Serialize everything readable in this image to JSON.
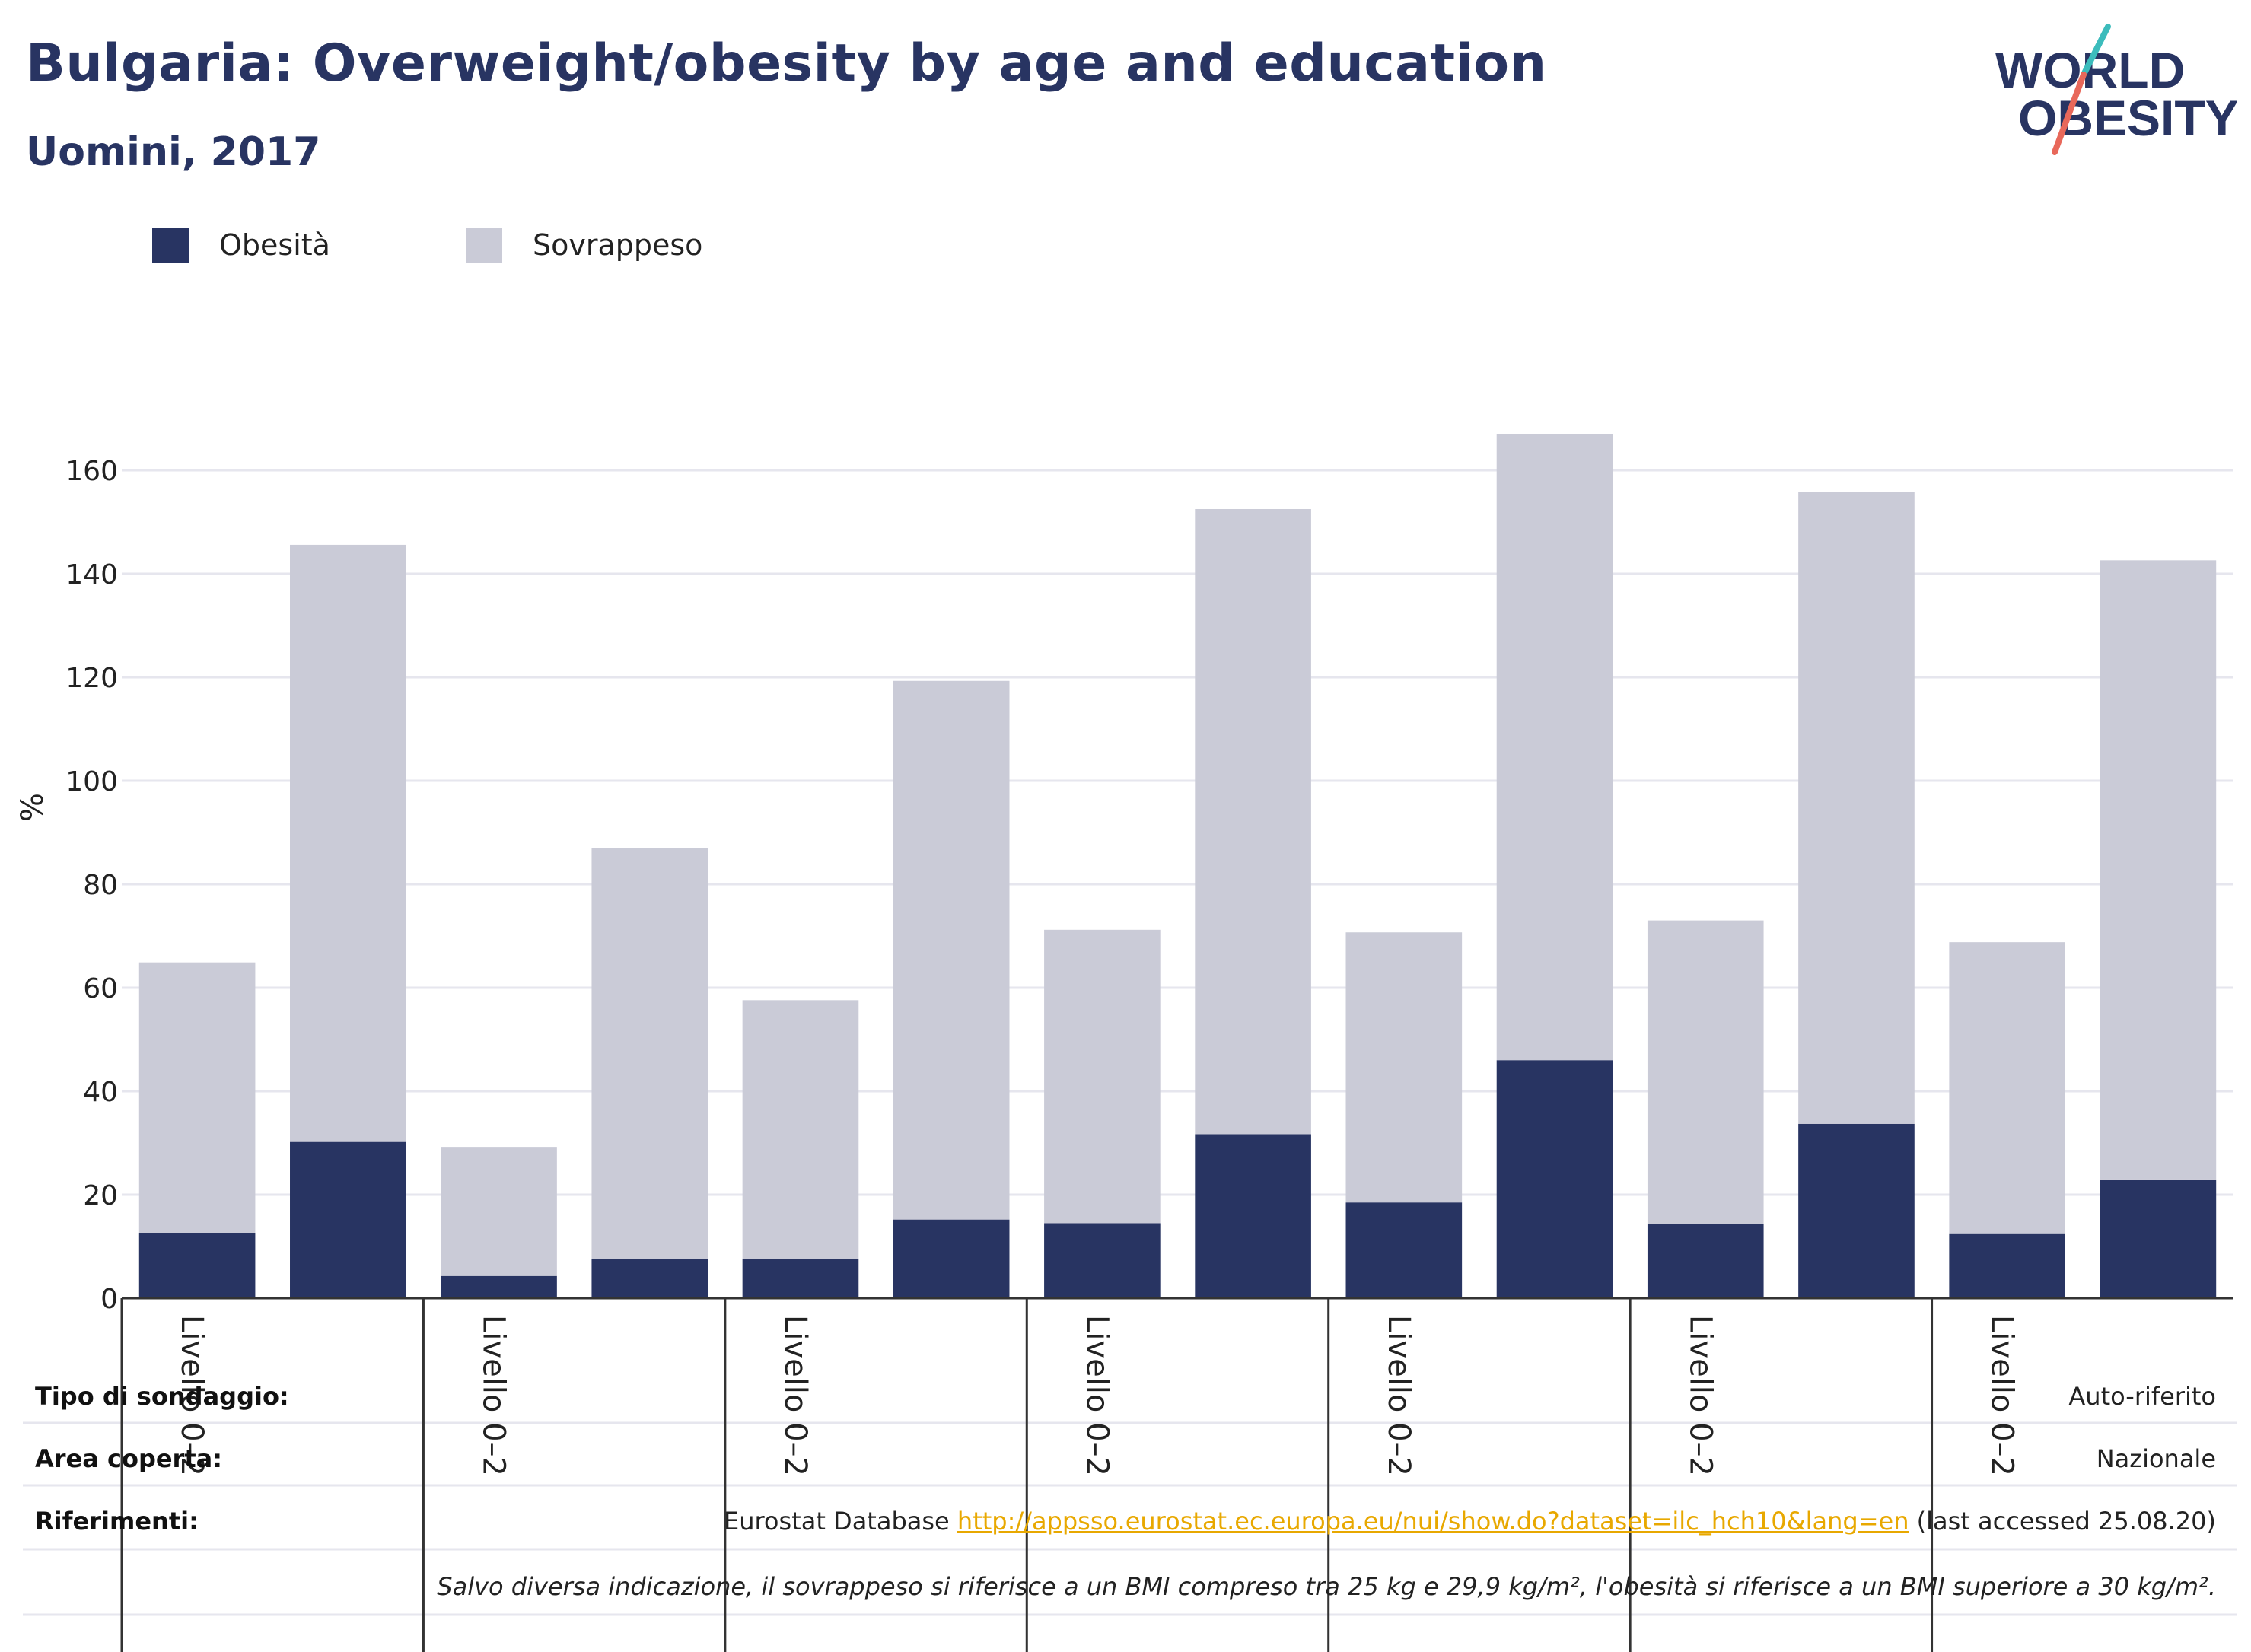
{
  "title": "Bulgaria: Overweight/obesity by age and education",
  "subtitle": "Uomini, 2017",
  "logo": {
    "line1": "WORLD",
    "line2": "OBESITY"
  },
  "info": {
    "survey_label": "Tipo di sondaggio:",
    "survey_value": "Auto-riferito",
    "area_label": "Area coperta:",
    "area_value": "Nazionale",
    "ref_label": "Riferimenti:",
    "ref_prefix": "Eurostat Database ",
    "ref_link": "http://appsso.eurostat.ec.europa.eu/nui/show.do?dataset=ilc_hch10&lang=en",
    "ref_suffix": " (last accessed 25.08.20)",
    "note": "Salvo diversa indicazione, il sovrappeso si riferisce a un BMI compreso tra 25 kg e 29,9 kg/m², l'obesità si riferisce a un BMI superiore a 30 kg/m²."
  },
  "colors": {
    "obesity": "#283462",
    "overweight": "#cacbd7",
    "grid": "#e6e6ee",
    "axis": "#333333"
  },
  "chart_data": {
    "type": "bar",
    "stacked": true,
    "ylabel": "%",
    "ylim": [
      0,
      170
    ],
    "yticks": [
      0,
      20,
      40,
      60,
      80,
      100,
      120,
      140,
      160
    ],
    "group_labels": [
      "Livello 0–2",
      "Livello 0–2",
      "Livello 0–2",
      "Livello 0–2",
      "Livello 0–2",
      "Livello 0–2",
      "Livello 0–2"
    ],
    "bars_per_group": 2,
    "legend": [
      "Obesità",
      "Sovrappeso"
    ],
    "legend_position": "top-left",
    "grid": true,
    "series": [
      {
        "name": "Obesità",
        "values": [
          12.5,
          30.2,
          4.3,
          7.5,
          7.5,
          15.2,
          14.5,
          31.7,
          18.5,
          46.0,
          14.3,
          33.7,
          12.4,
          22.8
        ]
      },
      {
        "name": "Sovrappeso",
        "values": [
          52.4,
          115.4,
          24.8,
          79.5,
          50.1,
          104.1,
          56.7,
          120.8,
          52.2,
          121.0,
          58.7,
          122.1,
          56.4,
          119.8
        ]
      }
    ]
  }
}
